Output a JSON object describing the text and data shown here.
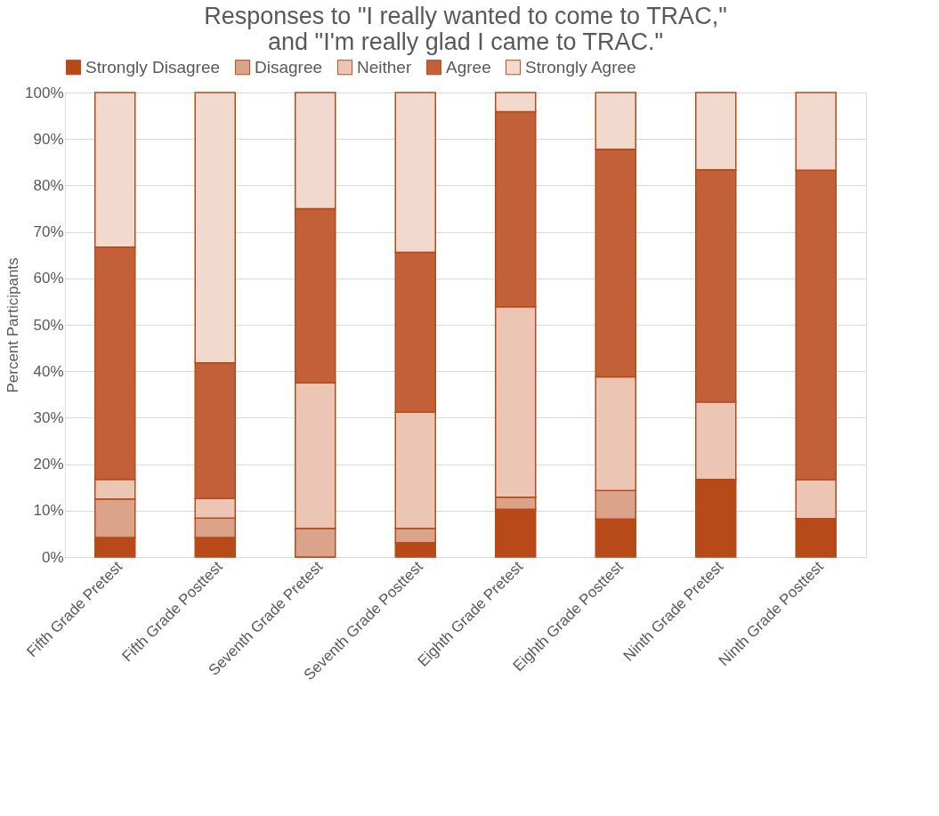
{
  "chart_data": {
    "type": "bar",
    "stacked": true,
    "title": [
      "Responses to \"I really wanted to come to TRAC,\"",
      "and \"I'm really glad I came to TRAC.\""
    ],
    "ylabel": "Percent Participants",
    "categories": [
      "Fifth Grade Pretest",
      "Fifth Grade Posttest",
      "Seventh Grade Pretest",
      "Seventh Grade Posttest",
      "Eighth Grade Pretest",
      "Eighth Grade Posttest",
      "Ninth Grade Pretest",
      "Ninth Grade Posttest"
    ],
    "series": [
      {
        "name": "Strongly Disagree",
        "color": "#b84a1a",
        "values": [
          4.2,
          4.2,
          0,
          3.1,
          10.3,
          8.2,
          16.7,
          8.3
        ]
      },
      {
        "name": "Disagree",
        "color": "#dba38a",
        "values": [
          8.3,
          4.2,
          6.2,
          3.1,
          2.6,
          6.1,
          0,
          0
        ]
      },
      {
        "name": "Neither",
        "color": "#ebc6b5",
        "values": [
          4.2,
          4.2,
          31.3,
          25,
          41,
          24.5,
          16.7,
          8.3
        ]
      },
      {
        "name": "Agree",
        "color": "#c2603a",
        "values": [
          50,
          29.2,
          37.5,
          34.4,
          42,
          49,
          50,
          66.7
        ]
      },
      {
        "name": "Strongly Agree",
        "color": "#f2d9cd",
        "values": [
          33.3,
          58.2,
          25,
          34.4,
          4.1,
          12.2,
          16.6,
          16.7
        ]
      }
    ],
    "ylim": [
      0,
      100
    ],
    "yticks": [
      {
        "value": 0,
        "label": "0%"
      },
      {
        "value": 10,
        "label": "10%"
      },
      {
        "value": 20,
        "label": "20%"
      },
      {
        "value": 30,
        "label": "30%"
      },
      {
        "value": 40,
        "label": "40%"
      },
      {
        "value": 50,
        "label": "50%"
      },
      {
        "value": 60,
        "label": "60%"
      },
      {
        "value": 70,
        "label": "70%"
      },
      {
        "value": 80,
        "label": "80%"
      },
      {
        "value": 90,
        "label": "90%"
      },
      {
        "value": 100,
        "label": "100%"
      }
    ],
    "grid": "y",
    "legend": "top"
  }
}
